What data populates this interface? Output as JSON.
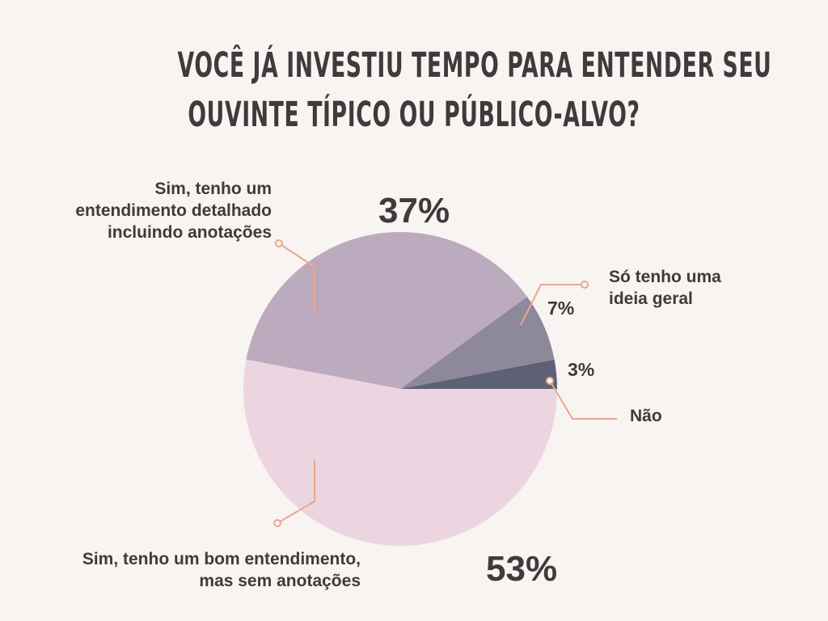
{
  "title": {
    "line1": "VOCÊ JÁ INVESTIU TEMPO PARA ENTENDER SEU",
    "line2": "OUVINTE TÍPICO OU PÚBLICO-ALVO?"
  },
  "colors": {
    "background": "#f7f4f1",
    "leader": "#e8a88e",
    "text": "#3d3b3b"
  },
  "chart_data": {
    "type": "pie",
    "title": "VOCÊ JÁ INVESTIU TEMPO PARA ENTENDER SEU OUVINTE TÍPICO OU PÚBLICO-ALVO?",
    "start_angle_deg": 0,
    "direction": "counterclockwise",
    "slices": [
      {
        "key": "nao",
        "label": "Não",
        "value": 3,
        "percent_label": "3%",
        "color": "#5e6176"
      },
      {
        "key": "so-ideia",
        "label": "Só tenho uma\nideia geral",
        "value": 7,
        "percent_label": "7%",
        "color": "#8e889b"
      },
      {
        "key": "detalhado",
        "label": "Sim, tenho um\nentendimento detalhado\nincluindo anotações",
        "value": 37,
        "percent_label": "37%",
        "color": "#bcaabe"
      },
      {
        "key": "bom",
        "label": "Sim, tenho um bom entendimento,\nmas sem anotações",
        "value": 53,
        "percent_label": "53%",
        "color": "#ecd5e0"
      }
    ]
  }
}
